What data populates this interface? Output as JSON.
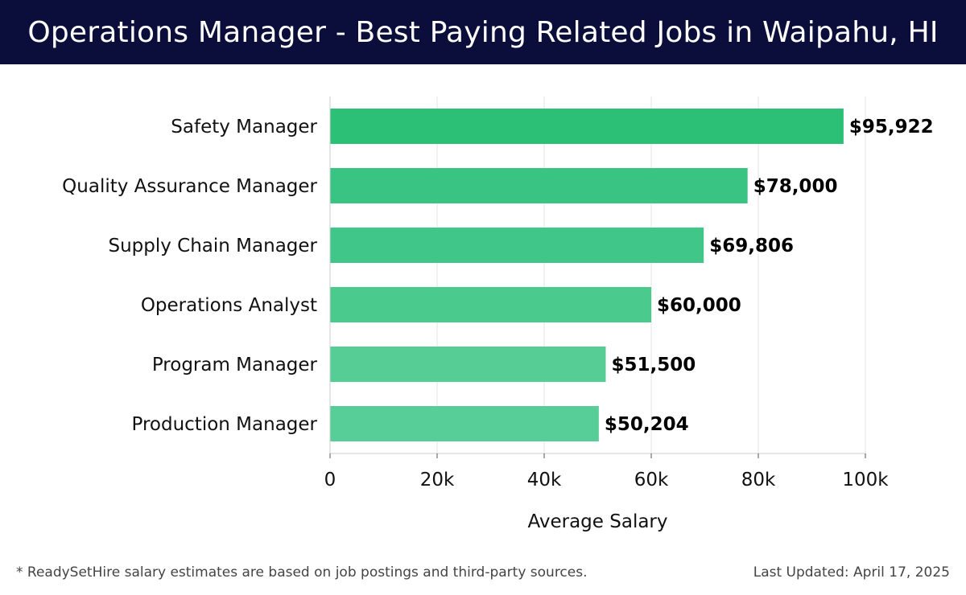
{
  "header": {
    "title": "Operations Manager - Best Paying Related Jobs in Waipahu, HI"
  },
  "chart_data": {
    "type": "bar",
    "orientation": "horizontal",
    "title": "Operations Manager - Best Paying Related Jobs in Waipahu, HI",
    "xlabel": "Average Salary",
    "ylabel": "",
    "categories": [
      "Safety Manager",
      "Quality Assurance Manager",
      "Supply Chain Manager",
      "Operations Analyst",
      "Program Manager",
      "Production Manager"
    ],
    "values": [
      95922,
      78000,
      69806,
      60000,
      51500,
      50204
    ],
    "value_labels": [
      "$95,922",
      "$78,000",
      "$69,806",
      "$60,000",
      "$51,500",
      "$50,204"
    ],
    "xlim": [
      0,
      100000
    ],
    "xticks": [
      0,
      20000,
      40000,
      60000,
      80000,
      100000
    ],
    "xtick_labels": [
      "0",
      "20k",
      "40k",
      "60k",
      "80k",
      "100k"
    ],
    "grid": true,
    "colors": [
      "#2cbf76",
      "#3ac483",
      "#40c688",
      "#4bca8e",
      "#55cd95",
      "#57ce97"
    ]
  },
  "footer": {
    "note": "* ReadySetHire salary estimates are based on job postings and third-party sources.",
    "updated": "Last Updated: April 17, 2025"
  }
}
